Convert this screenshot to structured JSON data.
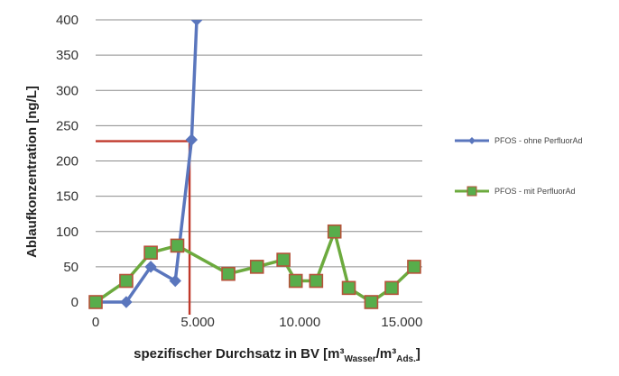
{
  "chart_data": {
    "type": "line",
    "xlabel": {
      "prefix": "spezifischer Durchsatz in BV [m³",
      "sub1": "Wasser",
      "mid": "/m³",
      "sub2": "Ads.",
      "suffix": "]"
    },
    "ylabel": "Ablaufkonzentration  [ng/L]",
    "xlim": [
      0,
      16000
    ],
    "ylim": [
      0,
      400
    ],
    "x_ticks": [
      0,
      5000,
      10000,
      15000
    ],
    "x_tick_labels": [
      "0",
      "5.000",
      "10.000",
      "15.000"
    ],
    "y_ticks": [
      0,
      50,
      100,
      150,
      200,
      250,
      300,
      350,
      400
    ],
    "y_tick_labels": [
      "0",
      "50",
      "100",
      "150",
      "200",
      "250",
      "300",
      "350",
      "400"
    ],
    "grid": "horizontal",
    "legend_position": "right",
    "series": [
      {
        "name": "PFOS - ohne PerfluorAd",
        "color": "#5a76bd",
        "marker": "diamond",
        "points": [
          [
            0,
            0
          ],
          [
            1500,
            0
          ],
          [
            2700,
            50
          ],
          [
            3900,
            30
          ],
          [
            4700,
            230
          ],
          [
            4950,
            400
          ]
        ]
      },
      {
        "name": "PFOS - mit PerfluorAd",
        "color": "#6caa3e",
        "marker": "square",
        "marker_fill": "#58ad4b",
        "marker_edge": "#b5533a",
        "points": [
          [
            0,
            0
          ],
          [
            1500,
            30
          ],
          [
            2700,
            70
          ],
          [
            4000,
            80
          ],
          [
            6500,
            40
          ],
          [
            7900,
            50
          ],
          [
            9200,
            60
          ],
          [
            9800,
            30
          ],
          [
            10800,
            30
          ],
          [
            11700,
            100
          ],
          [
            12400,
            20
          ],
          [
            13500,
            0
          ],
          [
            14500,
            20
          ],
          [
            15600,
            50
          ]
        ]
      }
    ],
    "annotation": {
      "color": "#c0392b",
      "x": 4600,
      "y": 228
    }
  }
}
